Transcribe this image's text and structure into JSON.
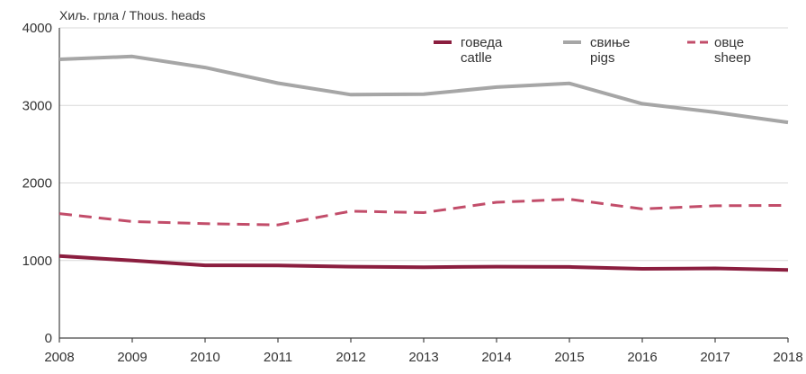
{
  "chart_data": {
    "type": "line",
    "unit_label": "Хиљ. грла / Thous. heads",
    "x": [
      "2008",
      "2009",
      "2010",
      "2011",
      "2012",
      "2013",
      "2014",
      "2015",
      "2016",
      "2017",
      "2018"
    ],
    "ylim": [
      0,
      4000
    ],
    "yticks": [
      "0",
      "1000",
      "2000",
      "3000",
      "4000"
    ],
    "grid": true,
    "legend_position": "top-right",
    "series": [
      {
        "name": "говеда",
        "name_en": "catlle",
        "style": "solid",
        "color": "#8b1e3f",
        "values": [
          1057,
          1000,
          938,
          937,
          921,
          914,
          920,
          917,
          893,
          898,
          878
        ]
      },
      {
        "name": "свиње",
        "name_en": "pigs",
        "style": "solid",
        "color": "#a6a6a6",
        "values": [
          3594,
          3631,
          3489,
          3287,
          3139,
          3144,
          3236,
          3284,
          3021,
          2911,
          2782
        ]
      },
      {
        "name": "овце",
        "name_en": "sheep",
        "style": "dashed",
        "color": "#c24d6a",
        "values": [
          1605,
          1503,
          1475,
          1460,
          1636,
          1617,
          1751,
          1790,
          1665,
          1706,
          1711
        ]
      }
    ]
  }
}
